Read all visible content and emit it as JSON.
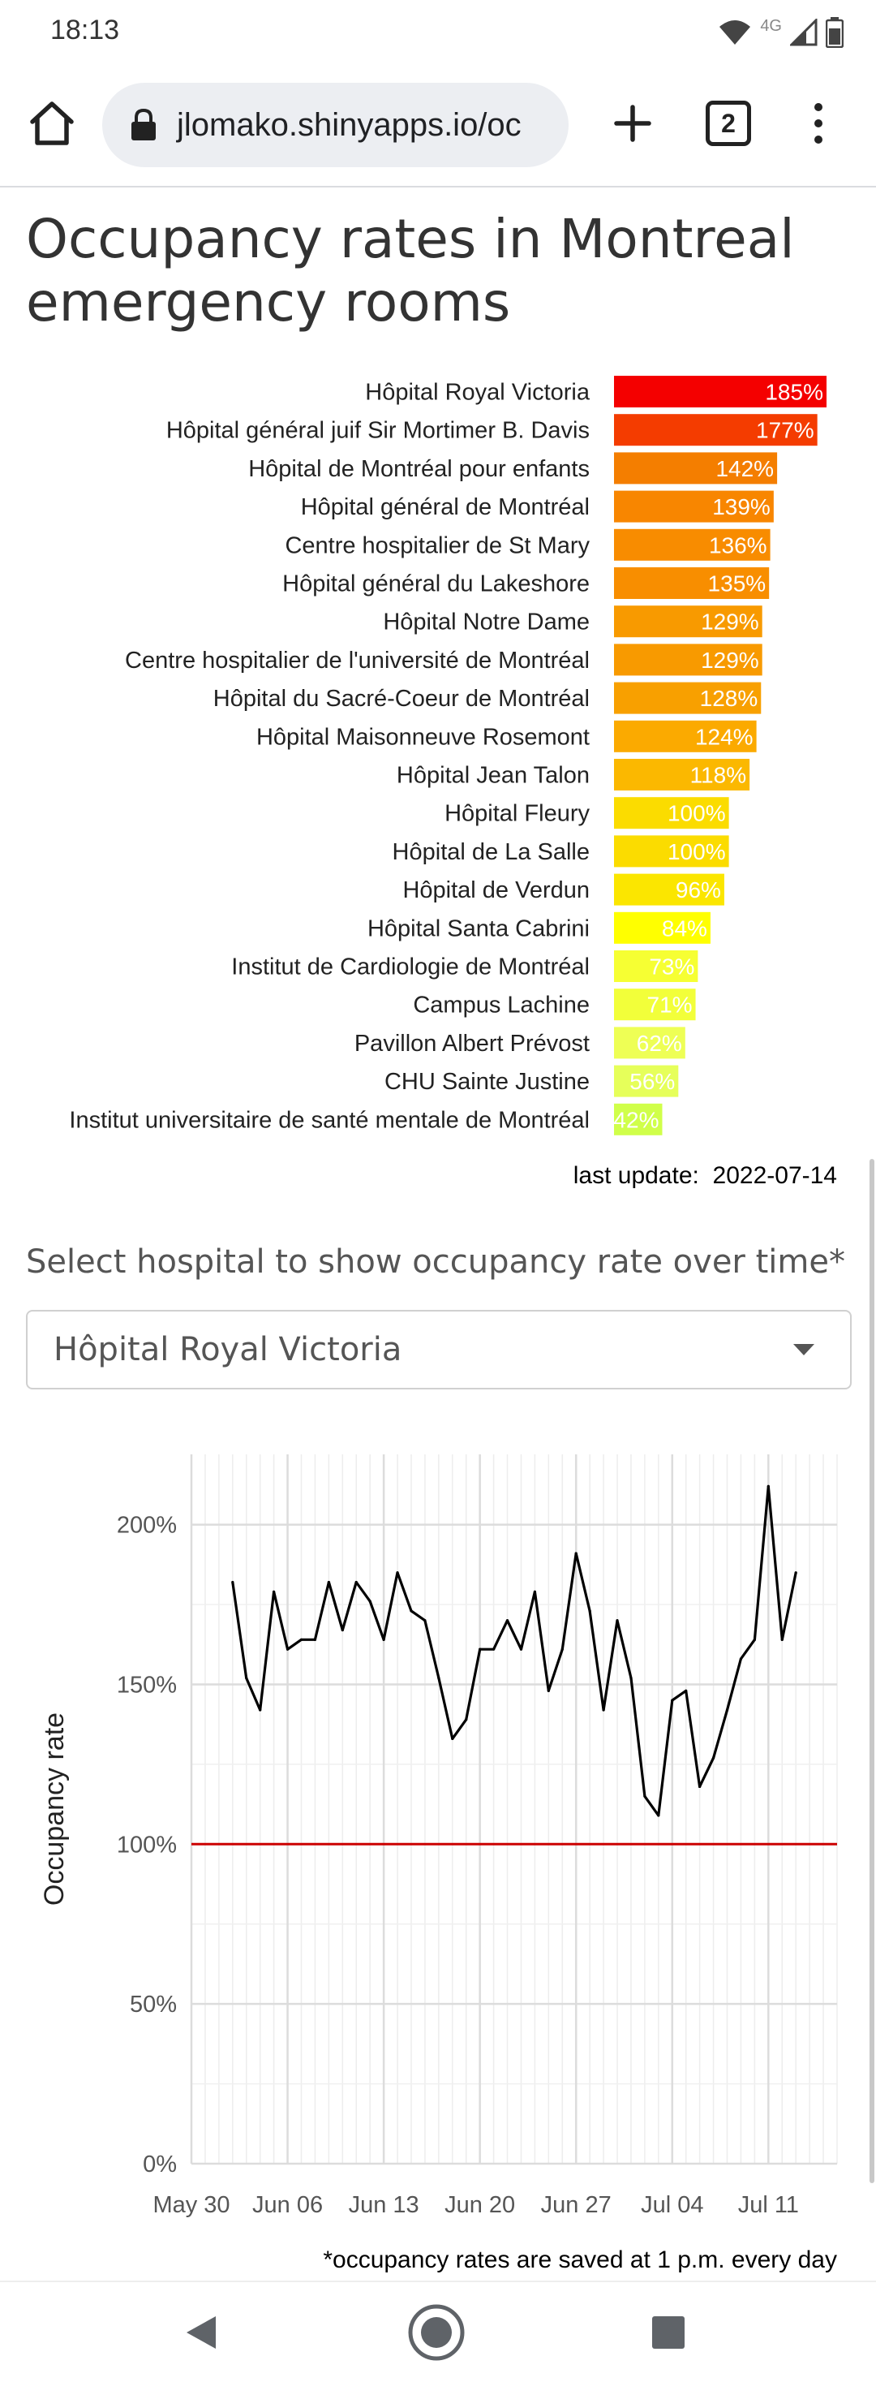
{
  "status_bar": {
    "time": "18:13",
    "network": "4G",
    "icons": [
      "wifi-icon",
      "signal-icon",
      "battery-icon"
    ]
  },
  "browser": {
    "url": "jlomako.shinyapps.io/oc",
    "tab_count": "2",
    "icons": [
      "home-icon",
      "lock-icon",
      "plus-icon",
      "tabs-icon",
      "menu-icon"
    ]
  },
  "page": {
    "title": "Occupancy rates in Montreal emergency rooms",
    "last_update_label": "last update:",
    "last_update_value": "2022-07-14",
    "select_label": "Select hospital to show occupancy rate over time*",
    "selected_hospital": "Hôpital Royal Victoria",
    "footnote": "*occupancy rates are saved at 1 p.m. every day"
  },
  "chart_data": [
    {
      "type": "bar",
      "orientation": "horizontal",
      "categories": [
        "Hôpital Royal Victoria",
        "Hôpital général juif Sir Mortimer B. Davis",
        "Hôpital de Montréal pour enfants",
        "Hôpital général de Montréal",
        "Centre hospitalier de St Mary",
        "Hôpital général du Lakeshore",
        "Hôpital Notre Dame",
        "Centre hospitalier de l'université de Montréal",
        "Hôpital du Sacré-Coeur de Montréal",
        "Hôpital Maisonneuve Rosemont",
        "Hôpital Jean Talon",
        "Hôpital Fleury",
        "Hôpital de La Salle",
        "Hôpital de Verdun",
        "Hôpital Santa Cabrini",
        "Institut de Cardiologie de Montréal",
        "Campus Lachine",
        "Pavillon Albert Prévost",
        "CHU Sainte Justine",
        "Institut universitaire de santé mentale de Montréal"
      ],
      "values": [
        185,
        177,
        142,
        139,
        136,
        135,
        129,
        129,
        128,
        124,
        118,
        100,
        100,
        96,
        84,
        73,
        71,
        62,
        56,
        42
      ],
      "labels": [
        "185%",
        "177%",
        "142%",
        "139%",
        "136%",
        "135%",
        "129%",
        "129%",
        "128%",
        "124%",
        "118%",
        "100%",
        "100%",
        "96%",
        "84%",
        "73%",
        "71%",
        "62%",
        "56%",
        "42%"
      ],
      "colors": [
        "#f40000",
        "#f43c00",
        "#f47e00",
        "#f88600",
        "#f88c00",
        "#f88e00",
        "#f89a00",
        "#f89a00",
        "#f8a000",
        "#fbaa00",
        "#fbb800",
        "#fbdc00",
        "#fbdc00",
        "#fbe600",
        "#ffff00",
        "#f6ff33",
        "#f2ff3a",
        "#eeff55",
        "#e6ff5a",
        "#d0ff4a"
      ],
      "value_label_color": "#ffffff"
    },
    {
      "type": "line",
      "series_hospital": "Hôpital Royal Victoria",
      "x_start": "2022-06-02",
      "x_end": "2022-07-14",
      "y": [
        182,
        152,
        142,
        179,
        161,
        164,
        164,
        182,
        167,
        182,
        176,
        164,
        185,
        173,
        170,
        152,
        133,
        139,
        161,
        161,
        170,
        161,
        179,
        148,
        161,
        191,
        173,
        142,
        170,
        152,
        115,
        109,
        145,
        148,
        118,
        127,
        142,
        158,
        164,
        212,
        164,
        185
      ],
      "xticks": [
        "May 30",
        "Jun 06",
        "Jun 13",
        "Jun 20",
        "Jun 27",
        "Jul 04",
        "Jul 11"
      ],
      "xtick_dates": [
        "2022-05-30",
        "2022-06-06",
        "2022-06-13",
        "2022-06-20",
        "2022-06-27",
        "2022-07-04",
        "2022-07-11"
      ],
      "x_range": [
        "2022-05-30",
        "2022-07-16"
      ],
      "ylim": [
        0,
        222
      ],
      "yticks": [
        0,
        50,
        100,
        150,
        200
      ],
      "ytick_labels": [
        "0%",
        "50%",
        "100%",
        "150%",
        "200%"
      ],
      "ylabel": "Occupancy rate",
      "reference_line": 100,
      "reference_color": "#cc0000",
      "line_color": "#000000",
      "grid": true
    }
  ]
}
